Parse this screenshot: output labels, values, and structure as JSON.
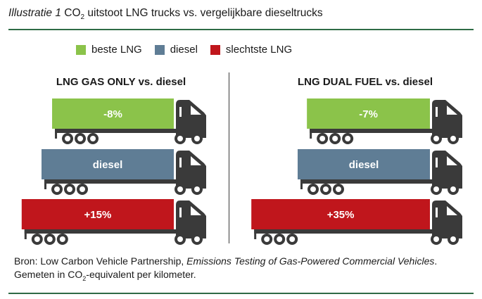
{
  "header": {
    "label_italic": "Illustratie 1",
    "title_pre": "CO",
    "title_sub": "2",
    "title_post": " uitstoot LNG trucks vs. vergelijkbare dieseltrucks"
  },
  "legend": [
    {
      "label": "beste LNG",
      "color": "#8bc34a"
    },
    {
      "label": "diesel",
      "color": "#5f7d95"
    },
    {
      "label": "slechtste LNG",
      "color": "#c0161c"
    }
  ],
  "colors": {
    "truck": "#3a3a3a",
    "text_on_bar": "#ffffff",
    "rule": "#2e6b45"
  },
  "chart_data": [
    {
      "type": "bar",
      "title": "LNG GAS ONLY vs. diesel",
      "categories": [
        "beste LNG",
        "diesel",
        "slechtste LNG"
      ],
      "values": [
        -8,
        0,
        15
      ],
      "labels": [
        "-8%",
        "diesel",
        "+15%"
      ]
    },
    {
      "type": "bar",
      "title": "LNG DUAL FUEL vs. diesel",
      "categories": [
        "beste LNG",
        "diesel",
        "slechtste LNG"
      ],
      "values": [
        -7,
        0,
        35
      ],
      "labels": [
        "-7%",
        "diesel",
        "+35%"
      ]
    }
  ],
  "footer": {
    "line1_pre": "Bron: Low Carbon Vehicle Partnership, ",
    "line1_italic": "Emissions Testing of Gas-Powered Commercial Vehicles",
    "line1_post": ".",
    "line2_pre": "Gemeten in CO",
    "line2_sub": "2",
    "line2_post": "-equivalent per kilometer."
  }
}
